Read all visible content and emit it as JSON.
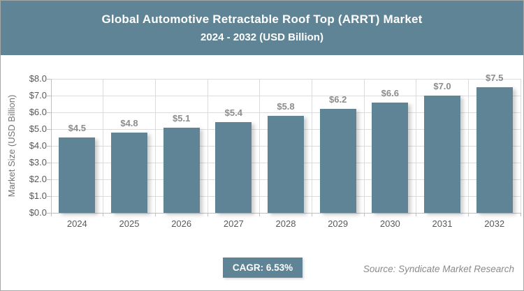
{
  "header": {
    "title": "Global Automotive Retractable Roof Top (ARRT) Market",
    "subtitle": "2024 - 2032 (USD Billion)"
  },
  "chart_data": {
    "type": "bar",
    "title": "Global Automotive Retractable Roof Top (ARRT) Market 2024 - 2032 (USD Billion)",
    "categories": [
      "2024",
      "2025",
      "2026",
      "2027",
      "2028",
      "2029",
      "2030",
      "2031",
      "2032"
    ],
    "values": [
      4.5,
      4.8,
      5.1,
      5.4,
      5.8,
      6.2,
      6.6,
      7.0,
      7.5
    ],
    "value_labels": [
      "$4.5",
      "$4.8",
      "$5.1",
      "$5.4",
      "$5.8",
      "$6.2",
      "$6.6",
      "$7.0",
      "$7.5"
    ],
    "xlabel": "",
    "ylabel": "Market Size (USD Billion)",
    "ylim": [
      0,
      8
    ],
    "ytick_step": 1,
    "ytick_labels": [
      "$0.0",
      "$1.0",
      "$2.0",
      "$3.0",
      "$4.0",
      "$5.0",
      "$6.0",
      "$7.0",
      "$8.0"
    ],
    "grid": true,
    "legend": false,
    "bar_color": "#5e8495"
  },
  "footer": {
    "cagr_label": "CAGR: 6.53%",
    "source": "Source: Syndicate Market Research"
  },
  "colors": {
    "accent": "#5e8495",
    "grid": "#dcdcdc",
    "axis": "#bfbfbf",
    "tick_label": "#595959",
    "value_label": "#8c8c8c",
    "source_text": "#8a8a8a"
  }
}
